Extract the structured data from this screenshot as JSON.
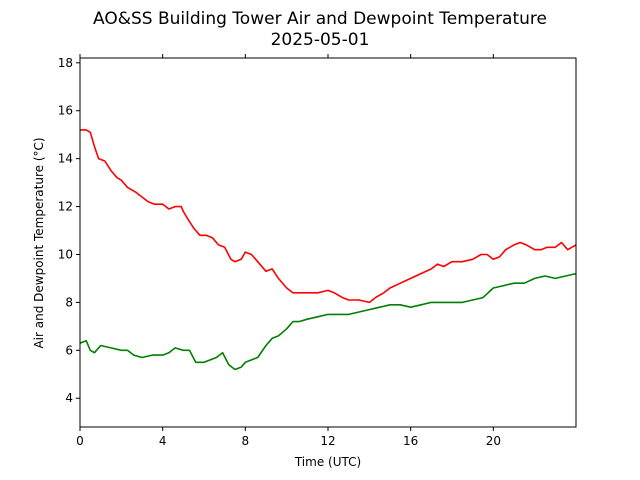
{
  "chart_data": {
    "type": "line",
    "title": "AO&SS Building Tower Air and Dewpoint Temperature",
    "subtitle": "2025-05-01",
    "xlabel": "Time (UTC)",
    "ylabel": "Air and Dewpoint Temperature (°C)",
    "xlim": [
      0,
      24
    ],
    "ylim": [
      2.8,
      18.2
    ],
    "xticks": [
      0,
      4,
      8,
      12,
      16,
      20
    ],
    "yticks": [
      4,
      6,
      8,
      10,
      12,
      14,
      16,
      18
    ],
    "grid": false,
    "legend": "none",
    "series": [
      {
        "color": "#ff0000",
        "x": [
          0,
          0.3,
          0.5,
          0.7,
          0.9,
          1.2,
          1.5,
          1.8,
          2.0,
          2.3,
          2.7,
          3.0,
          3.3,
          3.6,
          4.0,
          4.3,
          4.6,
          4.9,
          5.0,
          5.2,
          5.5,
          5.8,
          6.1,
          6.4,
          6.7,
          7.0,
          7.3,
          7.5,
          7.8,
          8.0,
          8.3,
          8.6,
          9.0,
          9.3,
          9.6,
          10.0,
          10.3,
          10.6,
          11.0,
          11.5,
          12.0,
          12.3,
          12.7,
          13.0,
          13.5,
          14.0,
          14.3,
          14.7,
          15.0,
          15.5,
          16.0,
          16.5,
          17.0,
          17.3,
          17.6,
          18.0,
          18.5,
          19.0,
          19.4,
          19.7,
          20.0,
          20.3,
          20.6,
          21.0,
          21.3,
          21.6,
          22.0,
          22.3,
          22.6,
          23.0,
          23.3,
          23.6,
          24.0
        ],
        "y": [
          15.2,
          15.2,
          15.1,
          14.5,
          14.0,
          13.9,
          13.5,
          13.2,
          13.1,
          12.8,
          12.6,
          12.4,
          12.2,
          12.1,
          12.1,
          11.9,
          12.0,
          12.0,
          11.8,
          11.5,
          11.1,
          10.8,
          10.8,
          10.7,
          10.4,
          10.3,
          9.8,
          9.7,
          9.8,
          10.1,
          10.0,
          9.7,
          9.3,
          9.4,
          9.0,
          8.6,
          8.4,
          8.4,
          8.4,
          8.4,
          8.5,
          8.4,
          8.2,
          8.1,
          8.1,
          8.0,
          8.2,
          8.4,
          8.6,
          8.8,
          9.0,
          9.2,
          9.4,
          9.6,
          9.5,
          9.7,
          9.7,
          9.8,
          10.0,
          10.0,
          9.8,
          9.9,
          10.2,
          10.4,
          10.5,
          10.4,
          10.2,
          10.2,
          10.3,
          10.3,
          10.5,
          10.2,
          10.4
        ]
      },
      {
        "color": "#008000",
        "x": [
          0,
          0.3,
          0.5,
          0.7,
          1.0,
          1.5,
          2.0,
          2.3,
          2.6,
          3.0,
          3.5,
          4.0,
          4.3,
          4.6,
          5.0,
          5.3,
          5.6,
          6.0,
          6.3,
          6.6,
          6.9,
          7.2,
          7.5,
          7.8,
          8.0,
          8.3,
          8.6,
          9.0,
          9.3,
          9.6,
          10.0,
          10.3,
          10.6,
          11.0,
          11.5,
          12.0,
          12.5,
          13.0,
          13.5,
          14.0,
          14.5,
          15.0,
          15.5,
          16.0,
          16.5,
          17.0,
          17.5,
          18.0,
          18.5,
          19.0,
          19.5,
          20.0,
          20.5,
          21.0,
          21.5,
          22.0,
          22.5,
          23.0,
          23.5,
          24.0
        ],
        "y": [
          6.3,
          6.4,
          6.0,
          5.9,
          6.2,
          6.1,
          6.0,
          6.0,
          5.8,
          5.7,
          5.8,
          5.8,
          5.9,
          6.1,
          6.0,
          6.0,
          5.5,
          5.5,
          5.6,
          5.7,
          5.9,
          5.4,
          5.2,
          5.3,
          5.5,
          5.6,
          5.7,
          6.2,
          6.5,
          6.6,
          6.9,
          7.2,
          7.2,
          7.3,
          7.4,
          7.5,
          7.5,
          7.5,
          7.6,
          7.7,
          7.8,
          7.9,
          7.9,
          7.8,
          7.9,
          8.0,
          8.0,
          8.0,
          8.0,
          8.1,
          8.2,
          8.6,
          8.7,
          8.8,
          8.8,
          9.0,
          9.1,
          9.0,
          9.1,
          9.2
        ]
      }
    ]
  }
}
